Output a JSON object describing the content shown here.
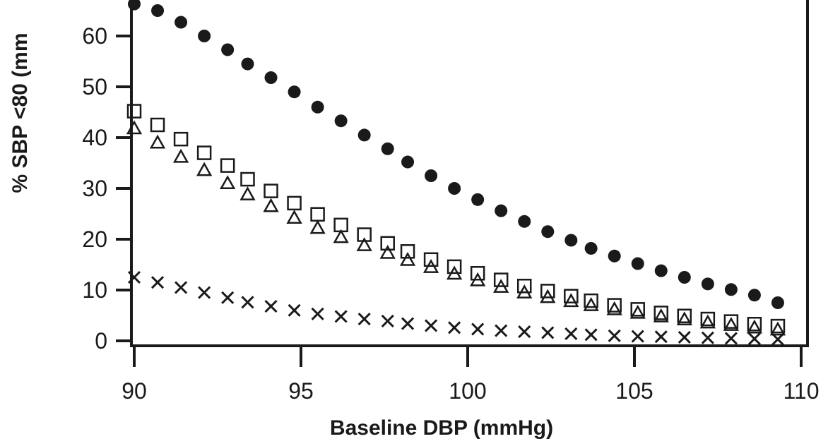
{
  "chart_data": {
    "type": "scatter",
    "title": "",
    "xlabel": "Baseline DBP (mmHg)",
    "ylabel": "% SBP <80 (mm",
    "xlim": [
      90,
      110
    ],
    "ylim": [
      0,
      65
    ],
    "xticks": [
      "90",
      "95",
      "100",
      "105",
      "110"
    ],
    "yticks": [
      "0",
      "10",
      "20",
      "30",
      "40",
      "50",
      "60"
    ],
    "grid": false,
    "legend": "none",
    "x": [
      90.0,
      90.7,
      91.4,
      92.1,
      92.8,
      93.4,
      94.1,
      94.8,
      95.5,
      96.2,
      96.9,
      97.6,
      98.2,
      98.9,
      99.6,
      100.3,
      101.0,
      101.7,
      102.4,
      103.1,
      103.7,
      104.4,
      105.1,
      105.8,
      106.5,
      107.2,
      107.9,
      108.6,
      109.3
    ],
    "series": [
      {
        "marker": "filled-circle",
        "values": [
          66.3,
          65.0,
          62.7,
          60.0,
          57.3,
          54.5,
          51.8,
          49.0,
          46.0,
          43.3,
          40.5,
          37.8,
          35.2,
          32.5,
          30.0,
          27.8,
          25.6,
          23.5,
          21.5,
          19.8,
          18.2,
          16.7,
          15.2,
          13.8,
          12.5,
          11.2,
          10.1,
          9.0,
          7.5
        ]
      },
      {
        "marker": "open-square",
        "values": [
          45.2,
          42.5,
          39.7,
          37.0,
          34.5,
          31.8,
          29.5,
          27.1,
          24.9,
          22.8,
          20.9,
          19.2,
          17.6,
          16.0,
          14.6,
          13.3,
          12.0,
          10.8,
          9.8,
          8.8,
          7.9,
          7.0,
          6.2,
          5.5,
          4.9,
          4.3,
          3.8,
          3.3,
          2.9
        ]
      },
      {
        "marker": "open-triangle",
        "values": [
          41.8,
          39.0,
          36.2,
          33.6,
          31.0,
          28.8,
          26.5,
          24.2,
          22.2,
          20.4,
          18.8,
          17.3,
          15.9,
          14.5,
          13.2,
          11.9,
          10.6,
          9.5,
          8.6,
          7.8,
          7.0,
          6.2,
          5.5,
          4.8,
          4.2,
          3.6,
          3.1,
          2.6,
          2.2
        ]
      },
      {
        "marker": "cross",
        "values": [
          12.5,
          11.5,
          10.5,
          9.5,
          8.5,
          7.6,
          6.8,
          6.0,
          5.3,
          4.8,
          4.3,
          3.9,
          3.4,
          3.0,
          2.6,
          2.3,
          2.0,
          1.8,
          1.6,
          1.4,
          1.2,
          1.0,
          0.9,
          0.8,
          0.7,
          0.6,
          0.5,
          0.4,
          0.3
        ]
      }
    ],
    "colors": {
      "marker": "#1a1a1a",
      "axis": "#1a1a1a",
      "background": "#ffffff"
    }
  }
}
